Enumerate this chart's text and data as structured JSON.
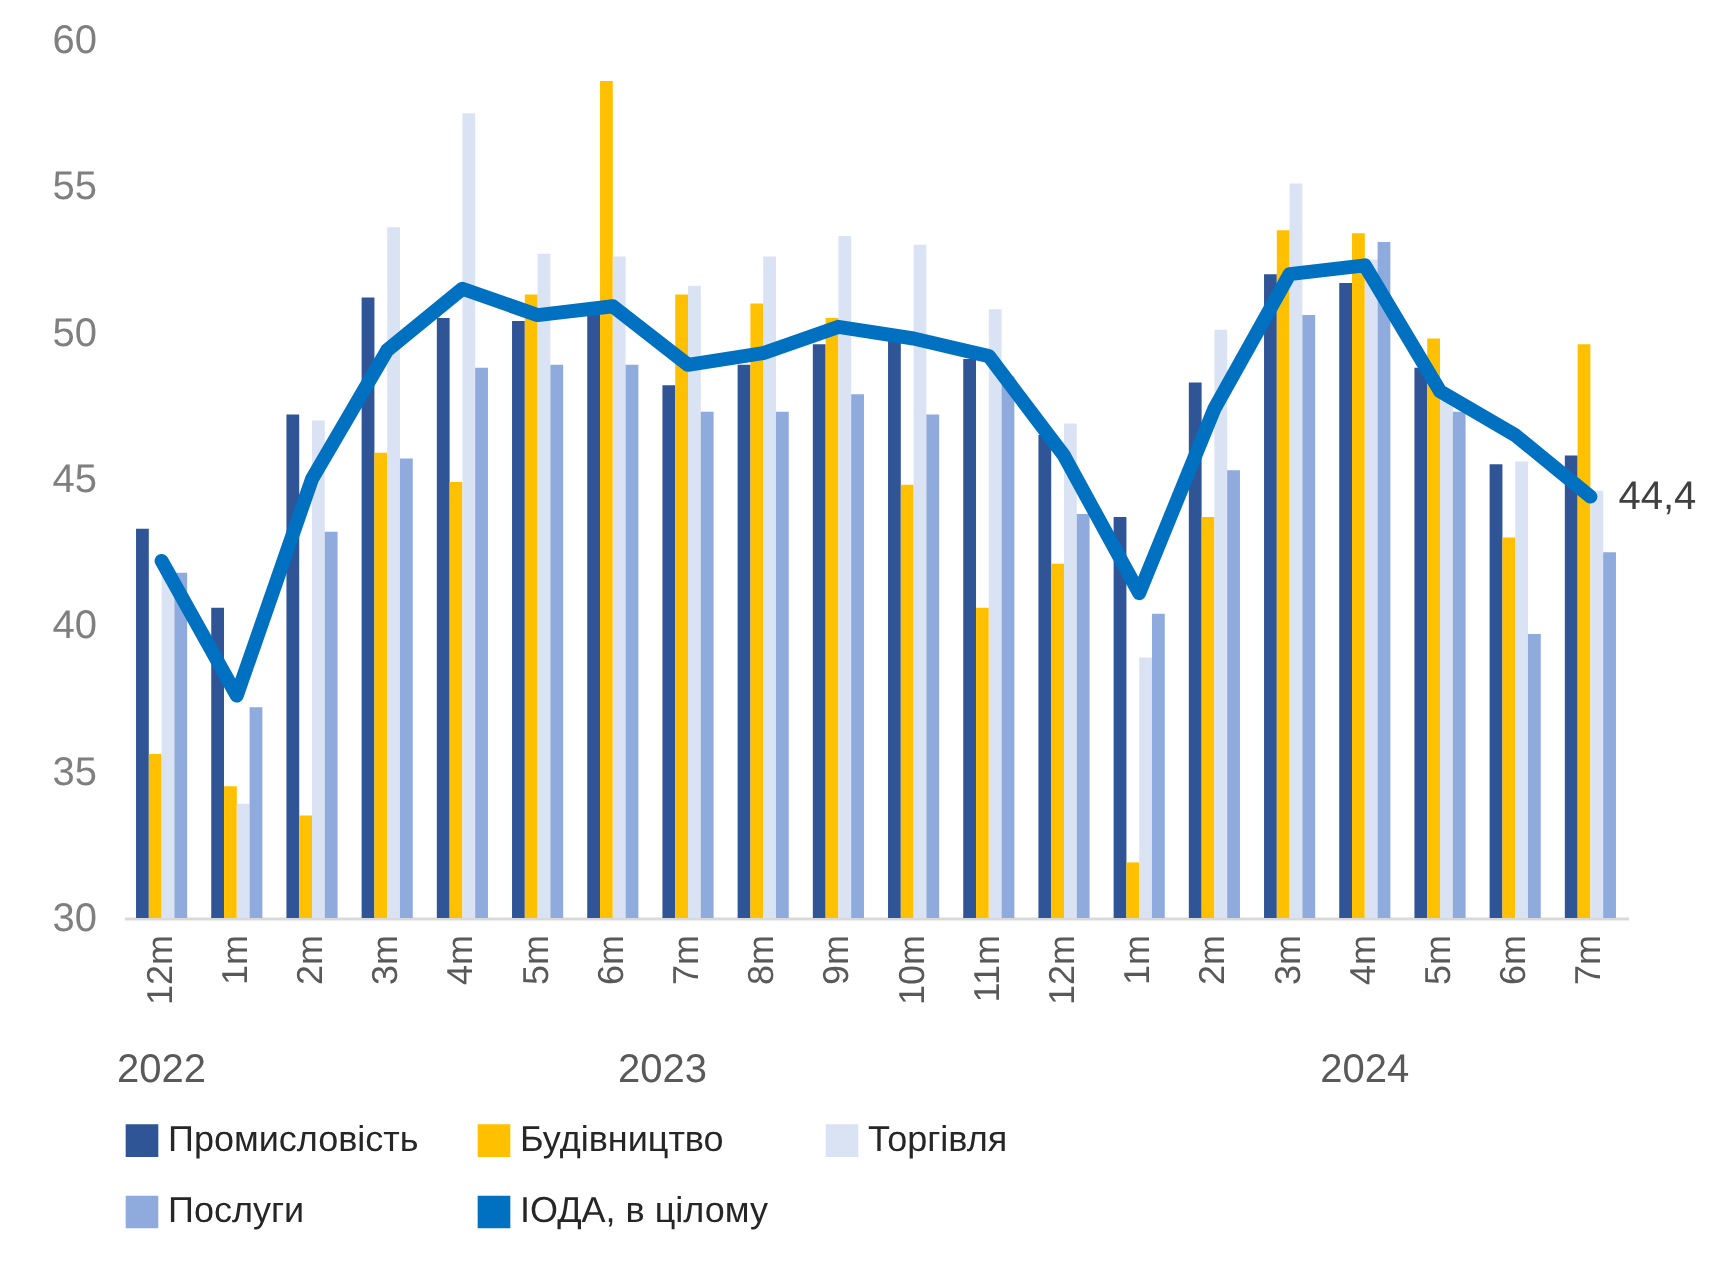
{
  "chart_data": {
    "type": "bar",
    "categories": [
      "12m",
      "1m",
      "2m",
      "3m",
      "4m",
      "5m",
      "6m",
      "7m",
      "8m",
      "9m",
      "10m",
      "11m",
      "12m",
      "1m",
      "2m",
      "3m",
      "4m",
      "5m",
      "6m",
      "7m"
    ],
    "series": [
      {
        "name": "Промисловість",
        "color": "#2f5597",
        "values": [
          43.3,
          40.6,
          47.2,
          51.2,
          50.5,
          50.4,
          50.8,
          48.2,
          48.9,
          49.6,
          49.8,
          49.1,
          46.5,
          43.7,
          48.3,
          52.0,
          51.7,
          48.8,
          45.5,
          45.8
        ]
      },
      {
        "name": "Будівництво",
        "color": "#ffc000",
        "values": [
          35.6,
          34.5,
          33.5,
          45.9,
          44.9,
          51.3,
          58.6,
          51.3,
          51.0,
          50.5,
          44.8,
          40.6,
          42.1,
          31.9,
          43.7,
          53.5,
          53.4,
          49.8,
          43.0,
          49.6
        ]
      },
      {
        "name": "Торгівля",
        "color": "#dae3f3",
        "values": [
          42.0,
          33.9,
          47.0,
          53.6,
          57.5,
          52.7,
          52.6,
          51.6,
          52.6,
          53.3,
          53.0,
          50.8,
          46.9,
          38.9,
          50.1,
          55.1,
          52.5,
          47.8,
          45.6,
          44.6
        ]
      },
      {
        "name": "Послуги",
        "color": "#8faadc",
        "values": [
          41.8,
          37.2,
          43.2,
          45.7,
          48.8,
          48.9,
          48.9,
          47.3,
          47.3,
          47.9,
          47.2,
          48.5,
          43.8,
          40.4,
          45.3,
          50.6,
          53.1,
          47.3,
          39.7,
          42.5
        ]
      },
      {
        "name": "ІОДА, в цілому",
        "type": "line",
        "color": "#0070c0",
        "values": [
          42.2,
          37.6,
          45.0,
          49.4,
          51.5,
          50.6,
          50.9,
          48.9,
          49.3,
          50.2,
          49.8,
          49.2,
          45.8,
          41.1,
          47.4,
          52.0,
          52.3,
          48.0,
          46.5,
          44.4
        ],
        "value_labels": [
          null,
          null,
          null,
          null,
          null,
          null,
          null,
          null,
          null,
          null,
          null,
          null,
          null,
          null,
          null,
          null,
          null,
          null,
          null,
          "44,4"
        ]
      }
    ],
    "ylim": [
      30,
      60
    ],
    "yticks": [
      30,
      35,
      40,
      45,
      50,
      55,
      60
    ],
    "annotations": [
      "2022",
      "2023",
      "2024"
    ],
    "legend": "bottom"
  }
}
